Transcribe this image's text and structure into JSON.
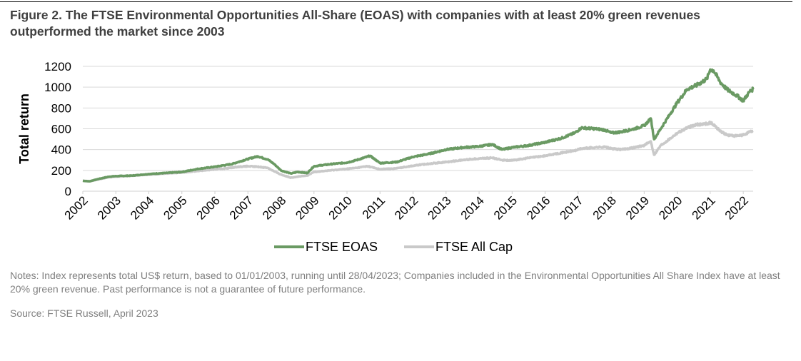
{
  "figure": {
    "title": "Figure 2. The FTSE Environmental Opportunities All-Share (EOAS) with companies with at least 20% green revenues outperformed the market since 2003",
    "notes": "Notes: Index represents total US$ return, based to 01/01/2003, running until 28/04/2023; Companies included in the Environmental Opportunities All Share Index have at least 20% green revenue. Past performance is not a guarantee of future performance.",
    "source": "Source: FTSE Russell, April 2023"
  },
  "chart_data": {
    "type": "line",
    "title": "",
    "xlabel": "",
    "ylabel": "Total return",
    "ylim": [
      0,
      1200
    ],
    "yticks": [
      0,
      200,
      400,
      600,
      800,
      1000,
      1200
    ],
    "xlim": [
      2002,
      2022.3
    ],
    "xtick_labels": [
      "2002",
      "2003",
      "2004",
      "2005",
      "2006",
      "2007",
      "2008",
      "2009",
      "2010",
      "2011",
      "2012",
      "2013",
      "2014",
      "2015",
      "2016",
      "2017",
      "2018",
      "2019",
      "2020",
      "2021",
      "2022"
    ],
    "grid": "horizontal",
    "legend_position": "bottom",
    "series": [
      {
        "name": "FTSE EOAS",
        "color": "#6a9a63",
        "x": [
          2002.0,
          2002.2,
          2002.5,
          2002.8,
          2003.0,
          2003.5,
          2004.0,
          2004.5,
          2005.0,
          2005.5,
          2006.0,
          2006.5,
          2006.7,
          2007.0,
          2007.3,
          2007.6,
          2007.8,
          2008.0,
          2008.3,
          2008.5,
          2008.8,
          2009.0,
          2009.5,
          2010.0,
          2010.3,
          2010.6,
          2010.7,
          2011.0,
          2011.5,
          2012.0,
          2012.5,
          2013.0,
          2013.5,
          2014.0,
          2014.4,
          2014.7,
          2015.0,
          2015.5,
          2016.0,
          2016.5,
          2016.9,
          2017.1,
          2017.5,
          2017.8,
          2018.0,
          2018.3,
          2018.7,
          2019.0,
          2019.15,
          2019.2,
          2019.3,
          2019.5,
          2019.8,
          2020.0,
          2020.3,
          2020.6,
          2020.9,
          2021.0,
          2021.1,
          2021.3,
          2021.5,
          2021.8,
          2022.0,
          2022.2,
          2022.3
        ],
        "values": [
          100,
          95,
          120,
          140,
          145,
          150,
          165,
          175,
          185,
          215,
          235,
          260,
          280,
          310,
          335,
          305,
          260,
          200,
          170,
          185,
          175,
          240,
          260,
          275,
          300,
          330,
          340,
          270,
          280,
          330,
          360,
          400,
          420,
          430,
          450,
          400,
          420,
          440,
          470,
          510,
          560,
          610,
          600,
          590,
          560,
          570,
          600,
          630,
          680,
          700,
          500,
          600,
          750,
          850,
          980,
          1020,
          1080,
          1170,
          1160,
          1050,
          980,
          920,
          870,
          960,
          980
        ]
      },
      {
        "name": "FTSE All Cap",
        "color": "#c9c9c9",
        "x": [
          2002.0,
          2002.2,
          2002.5,
          2002.8,
          2003.0,
          2003.5,
          2004.0,
          2004.5,
          2005.0,
          2005.5,
          2006.0,
          2006.5,
          2006.7,
          2007.0,
          2007.3,
          2007.6,
          2007.8,
          2008.0,
          2008.3,
          2008.5,
          2008.8,
          2009.0,
          2009.5,
          2010.0,
          2010.3,
          2010.6,
          2010.7,
          2011.0,
          2011.5,
          2012.0,
          2012.5,
          2013.0,
          2013.5,
          2014.0,
          2014.4,
          2014.7,
          2015.0,
          2015.5,
          2016.0,
          2016.5,
          2016.9,
          2017.1,
          2017.5,
          2017.8,
          2018.0,
          2018.3,
          2018.7,
          2019.0,
          2019.15,
          2019.2,
          2019.3,
          2019.5,
          2019.8,
          2020.0,
          2020.3,
          2020.6,
          2020.9,
          2021.0,
          2021.1,
          2021.3,
          2021.5,
          2021.8,
          2022.0,
          2022.2,
          2022.3
        ],
        "values": [
          100,
          95,
          115,
          135,
          140,
          150,
          160,
          170,
          180,
          195,
          210,
          225,
          235,
          240,
          235,
          225,
          190,
          160,
          130,
          140,
          150,
          185,
          200,
          215,
          225,
          240,
          235,
          210,
          220,
          245,
          265,
          280,
          300,
          315,
          320,
          300,
          295,
          320,
          340,
          370,
          390,
          410,
          420,
          425,
          410,
          400,
          420,
          440,
          470,
          480,
          350,
          440,
          510,
          560,
          610,
          640,
          650,
          660,
          640,
          580,
          540,
          530,
          540,
          570,
          580
        ]
      }
    ]
  }
}
